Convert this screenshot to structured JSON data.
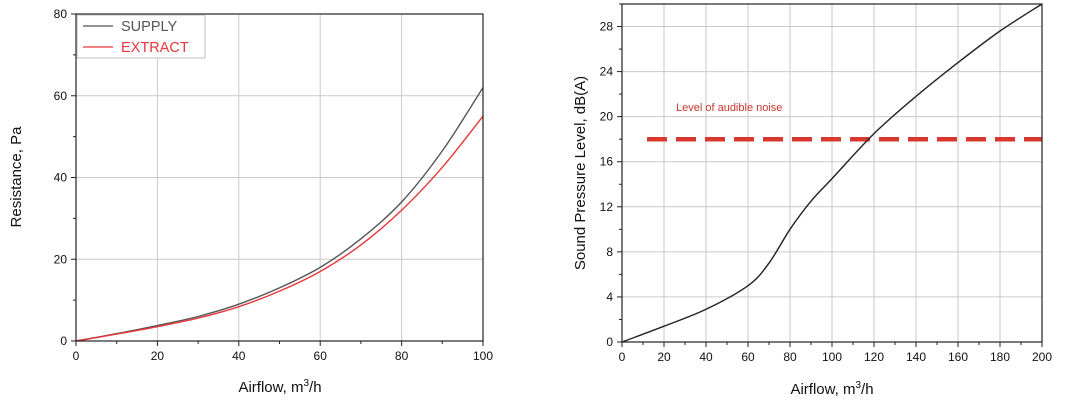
{
  "chart_data": [
    {
      "type": "line",
      "xlabel": "Airflow, m",
      "xlabel_sup": "3",
      "xlabel_tail": "/h",
      "ylabel": "Resistance, Pa",
      "xlim": [
        0,
        100
      ],
      "ylim": [
        0,
        80
      ],
      "x_ticks": [
        "0",
        "20",
        "40",
        "60",
        "80",
        "100"
      ],
      "y_ticks": [
        "0",
        "20",
        "40",
        "60",
        "80"
      ],
      "grid": true,
      "legend_position": "top-left",
      "series": [
        {
          "name": "SUPPLY",
          "color": "#555555",
          "x": [
            0,
            10,
            20,
            30,
            40,
            50,
            60,
            70,
            80,
            90,
            100
          ],
          "y": [
            0,
            1.8,
            3.8,
            6.0,
            9.0,
            13.0,
            18.0,
            25.0,
            34.0,
            46.5,
            62.0
          ]
        },
        {
          "name": "EXTRACT",
          "color": "#e8373b",
          "x": [
            0,
            10,
            20,
            30,
            40,
            50,
            60,
            70,
            80,
            90,
            100
          ],
          "y": [
            0,
            1.7,
            3.5,
            5.6,
            8.4,
            12.2,
            17.0,
            23.5,
            32.0,
            42.5,
            55.0
          ]
        }
      ]
    },
    {
      "type": "line",
      "xlabel": "Airflow, m",
      "xlabel_sup": "3",
      "xlabel_tail": "/h",
      "ylabel": "Sound Pressure Level, dB(A)",
      "xlim": [
        0,
        200
      ],
      "ylim": [
        0,
        30
      ],
      "x_ticks": [
        "0",
        "20",
        "40",
        "60",
        "80",
        "100",
        "120",
        "140",
        "160",
        "180",
        "200"
      ],
      "y_ticks": [
        "0",
        "4",
        "8",
        "12",
        "16",
        "20",
        "24",
        "28"
      ],
      "grid": true,
      "series": [
        {
          "color": "#222222",
          "x": [
            0,
            20,
            40,
            60,
            70,
            80,
            90,
            100,
            120,
            140,
            160,
            180,
            200
          ],
          "y": [
            0,
            1.4,
            2.9,
            5.0,
            7.0,
            10.0,
            12.5,
            14.5,
            18.5,
            21.8,
            24.8,
            27.6,
            30.0
          ]
        }
      ],
      "reference_line": {
        "y": 18,
        "color": "#d9382e",
        "style": "dashed",
        "label": "Level of audible noise"
      }
    }
  ]
}
